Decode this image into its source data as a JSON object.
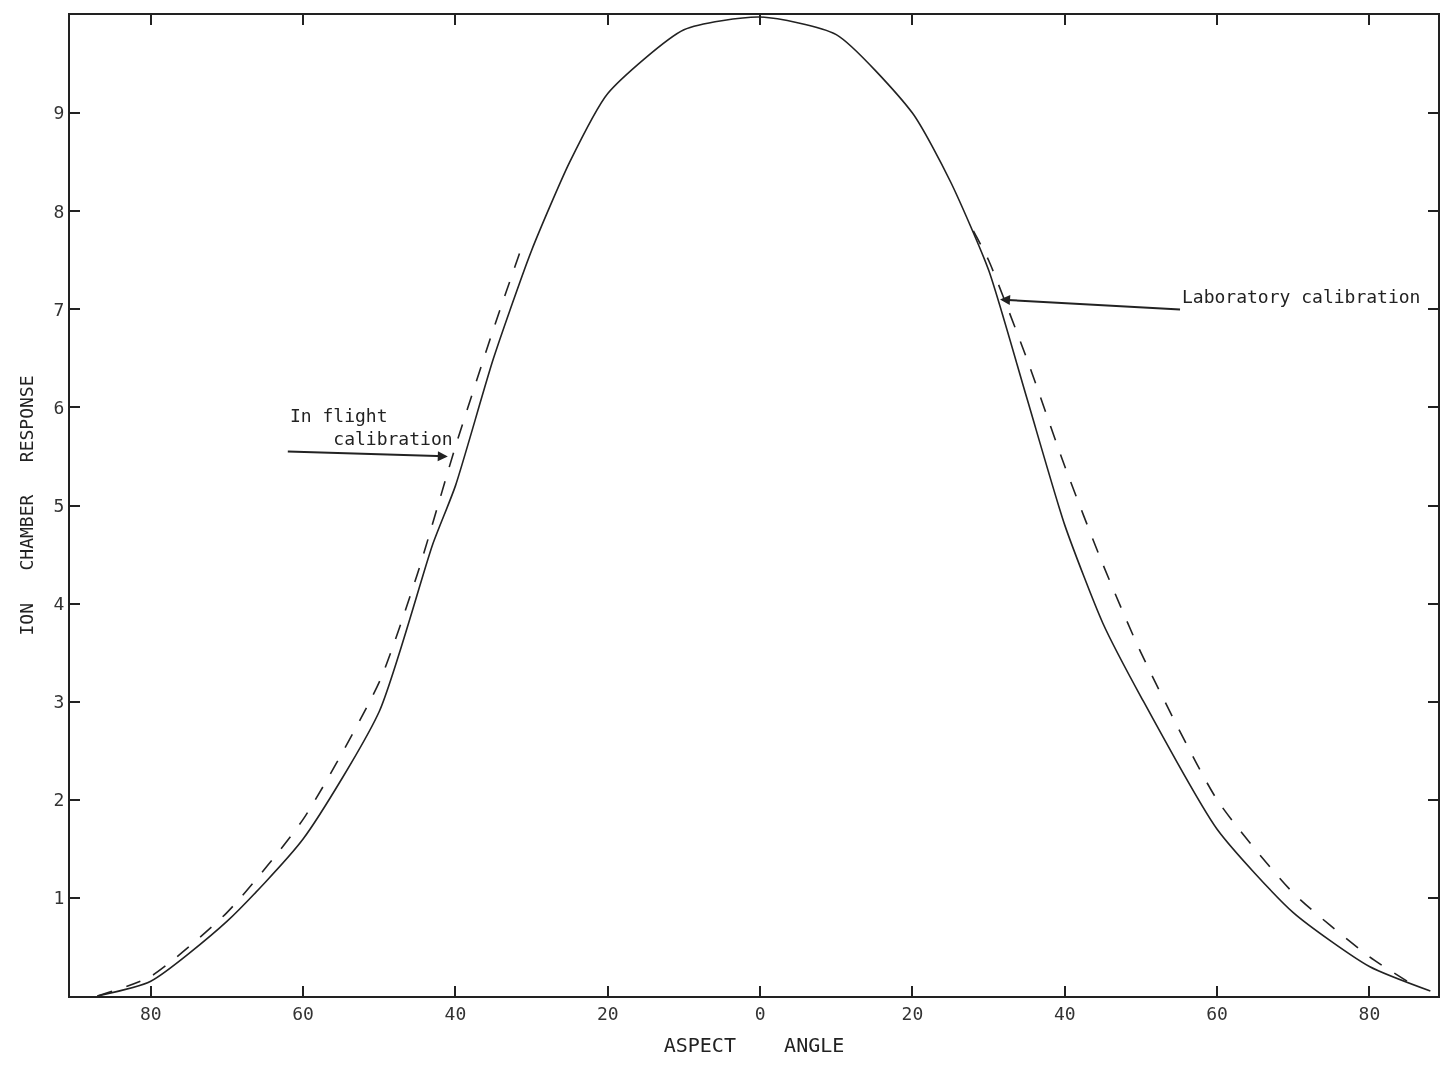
{
  "chart_data": {
    "type": "line",
    "xlabel": "ASPECT    ANGLE",
    "ylabel": "ION   CHAMBER   RESPONSE",
    "xlim": [
      -90.6,
      89
    ],
    "ylim": [
      0,
      10
    ],
    "xticks": [
      {
        "value": -80,
        "label": "80"
      },
      {
        "value": -60,
        "label": "60"
      },
      {
        "value": -40,
        "label": "40"
      },
      {
        "value": -20,
        "label": "20"
      },
      0,
      20,
      40,
      60,
      80
    ],
    "yticks": [
      1,
      2,
      3,
      4,
      5,
      6,
      7,
      8,
      9
    ],
    "marker": "none",
    "series": [
      {
        "color": "#222222",
        "line_style": "solid",
        "x": [
          -87,
          -80,
          -70,
          -60,
          -50,
          -43,
          -40,
          -35,
          -30,
          -25,
          -20,
          -10,
          0,
          10,
          20,
          25,
          30,
          35,
          40,
          45,
          50,
          60,
          70,
          80,
          88
        ],
        "values": [
          0,
          0.15,
          0.76,
          1.6,
          2.9,
          4.6,
          5.2,
          6.5,
          7.6,
          8.5,
          9.2,
          9.85,
          9.98,
          9.8,
          9.0,
          8.3,
          7.4,
          6.1,
          4.8,
          3.8,
          3.05,
          1.7,
          0.85,
          0.3,
          0.05
        ]
      },
      {
        "color": "#222222",
        "line_style": "dashed",
        "x": [
          -87,
          -80,
          -70,
          -60,
          -50,
          -45,
          -40,
          -35,
          -31,
          0,
          28,
          30,
          35,
          40,
          45,
          50,
          60,
          70,
          80,
          86
        ],
        "values": [
          0,
          0.2,
          0.85,
          1.8,
          3.2,
          4.3,
          5.6,
          6.8,
          7.7,
          null,
          7.8,
          7.5,
          6.5,
          5.4,
          4.4,
          3.5,
          2.0,
          1.05,
          0.4,
          0.1
        ]
      }
    ],
    "annotations": [
      {
        "text": "In flight\n    calibration",
        "x": -41,
        "y": 5.5
      },
      {
        "text": "Laboratory calibration",
        "x": 31.5,
        "y": 7.1
      }
    ]
  }
}
